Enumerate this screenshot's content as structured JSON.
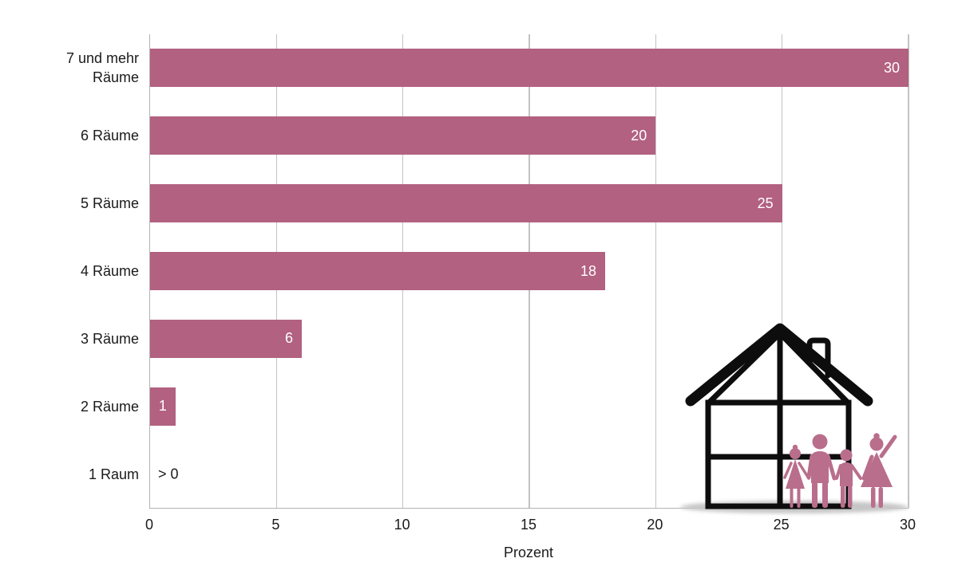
{
  "chart_data": {
    "type": "bar",
    "orientation": "horizontal",
    "title": "",
    "xlabel": "Prozent",
    "categories": [
      "7 und mehr Räume",
      "6 Räume",
      "5 Räume",
      "4 Räume",
      "3 Räume",
      "2 Räume",
      "1 Raum"
    ],
    "values": [
      30,
      20,
      25,
      18,
      6,
      1,
      0
    ],
    "value_labels": [
      "30",
      "20",
      "25",
      "18",
      "6",
      "1",
      "> 0"
    ],
    "xlim": [
      0,
      30
    ],
    "x_ticks": [
      0,
      5,
      10,
      15,
      20,
      25,
      30
    ],
    "grid": "vertical",
    "legend": "none",
    "bar_color": "#b26180"
  },
  "illustration": {
    "name": "house-with-family",
    "description": "black outline house with chimney and family of four silhouettes"
  },
  "colors": {
    "background": "#ffffff",
    "bar": "#b26180",
    "figure": "#b96e8c",
    "outline": "#0d0d0d",
    "grid": "#c3c3c3",
    "axis": "#b3b3b3",
    "text": "#1a1a1a",
    "value_text": "#ffffff",
    "shadow": "#c6c6c6"
  }
}
